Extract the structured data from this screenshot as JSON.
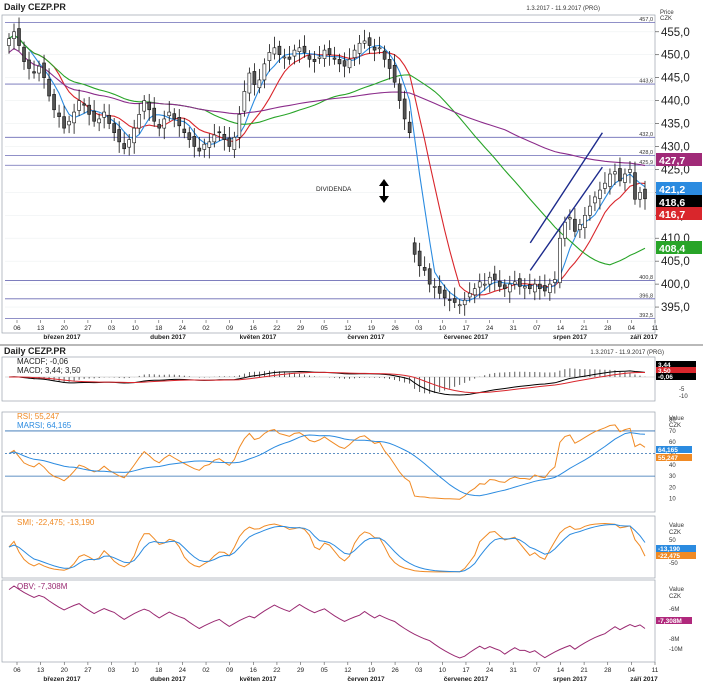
{
  "chart_data": [
    {
      "type": "candlestick",
      "title": "Daily CEZP.PR",
      "date_range": "1.3.2017 - 11.9.2017 (PRG)",
      "axis_title": [
        "Price",
        "CZK"
      ],
      "ylim": [
        390,
        458
      ],
      "y_ticks": [
        395.0,
        400.0,
        405.0,
        410.0,
        415.0,
        420.0,
        425.0,
        430.0,
        435.0,
        440.0,
        445.0,
        450.0,
        455.0
      ],
      "levels": [
        {
          "value": 457.0,
          "label": "457,0"
        },
        {
          "value": 443.6,
          "label": "443,6"
        },
        {
          "value": 432.0,
          "label": "432,0"
        },
        {
          "value": 428.0,
          "label": "428,0"
        },
        {
          "value": 425.9,
          "label": "425,9"
        },
        {
          "value": 400.8,
          "label": "400,8"
        },
        {
          "value": 396.8,
          "label": "396,8"
        },
        {
          "value": 392.5,
          "label": "392,5"
        }
      ],
      "annotation": "DIVIDENDA",
      "trend_channel": [
        {
          "from": [
            "2017-08-07",
            409.0
          ],
          "to": [
            "2017-08-29",
            433.0
          ]
        },
        {
          "from": [
            "2017-08-07",
            403.0
          ],
          "to": [
            "2017-08-29",
            425.5
          ]
        }
      ],
      "close": [
        453.5,
        455.0,
        452.0,
        448.5,
        447.0,
        446.0,
        447.5,
        445.0,
        441.0,
        438.0,
        436.5,
        434.0,
        435.5,
        437.5,
        440.0,
        439.0,
        437.0,
        435.5,
        436.0,
        437.5,
        435.0,
        433.0,
        431.0,
        429.5,
        431.5,
        434.0,
        437.0,
        440.0,
        438.0,
        435.5,
        434.0,
        436.0,
        437.5,
        436.0,
        434.5,
        433.0,
        431.5,
        430.0,
        429.0,
        430.5,
        431.0,
        432.5,
        433.0,
        431.5,
        430.0,
        432.0,
        437.0,
        442.0,
        446.0,
        443.5,
        444.5,
        448.0,
        450.5,
        451.5,
        450.0,
        449.5,
        449.0,
        451.0,
        451.5,
        450.5,
        449.0,
        448.5,
        449.5,
        451.0,
        450.0,
        449.0,
        448.0,
        447.5,
        449.0,
        451.0,
        452.5,
        453.0,
        452.0,
        451.0,
        451.5,
        449.0,
        447.0,
        444.0,
        440.0,
        436.0,
        433.0,
        406.5,
        404.0,
        403.0,
        400.0,
        399.5,
        398.0,
        397.0,
        396.5,
        396.0,
        395.5,
        396.5,
        398.0,
        399.0,
        400.5,
        400.0,
        401.5,
        401.0,
        399.5,
        399.0,
        400.0,
        400.5,
        399.5,
        399.5,
        399.0,
        400.0,
        399.0,
        398.5,
        400.0,
        401.0,
        410.0,
        413.5,
        414.5,
        411.5,
        413.0,
        415.0,
        417.0,
        419.0,
        420.5,
        422.0,
        424.0,
        424.5,
        422.5,
        424.0,
        425.0,
        418.5,
        420.0,
        418.6
      ],
      "series": [
        {
          "name": "SMA 10",
          "color": "#d9262c"
        },
        {
          "name": "SMA 5",
          "color": "#2b8be0"
        },
        {
          "name": "SMA 40",
          "color": "#28a428"
        },
        {
          "name": "SMA 100",
          "color": "#8b2c8b"
        }
      ],
      "last_values": [
        {
          "label": "427,7",
          "color": "#a02a78"
        },
        {
          "label": "421,2",
          "color": "#2b8be0"
        },
        {
          "label": "418,6",
          "color": "#000000"
        },
        {
          "label": "416,7",
          "color": "#d9262c"
        },
        {
          "label": "408,4",
          "color": "#28a428"
        }
      ],
      "x_tick_labels": [
        "06",
        "13",
        "20",
        "27",
        "03",
        "10",
        "18",
        "24",
        "02",
        "09",
        "16",
        "22",
        "29",
        "05",
        "12",
        "19",
        "26",
        "03",
        "10",
        "17",
        "24",
        "31",
        "07",
        "14",
        "21",
        "28",
        "04",
        "11"
      ],
      "month_labels": [
        "březen 2017",
        "duben 2017",
        "květen 2017",
        "červen 2017",
        "červenec 2017",
        "srpen 2017",
        "září 2017"
      ]
    },
    {
      "type": "line",
      "title": "Daily CEZP.PR",
      "date_range": "1.3.2017 - 11.9.2017 (PRG)",
      "legend": [
        "MACDF; -0,06",
        "MACD; 3,44; 3,50"
      ],
      "y_ticks": [
        "5",
        "-5",
        "-10"
      ],
      "last_values": [
        {
          "label": "3,44",
          "color": "#000000"
        },
        {
          "label": "3,50",
          "color": "#d9262c"
        },
        {
          "label": "-0,06",
          "color": "#000000"
        }
      ],
      "series": [
        {
          "name": "MACDF",
          "color": "#000000"
        },
        {
          "name": "MACD",
          "color": "#000000"
        },
        {
          "name": "signal",
          "color": "#d9262c"
        }
      ]
    },
    {
      "type": "line",
      "legend": [
        "RSI; 55,247",
        "MARSI; 64,165"
      ],
      "axis_title": [
        "Value",
        "CZK"
      ],
      "ylim": [
        0,
        85
      ],
      "y_ticks": [
        80,
        70,
        60,
        50,
        40,
        30,
        20,
        10
      ],
      "bands": [
        70,
        30
      ],
      "dashed_level": 50,
      "last_values": [
        {
          "label": "64,165",
          "color": "#2b8be0"
        },
        {
          "label": "55,247",
          "color": "#f08a24"
        }
      ],
      "series": [
        {
          "name": "RSI",
          "color": "#f08a24"
        },
        {
          "name": "MARSI",
          "color": "#2b8be0"
        }
      ]
    },
    {
      "type": "line",
      "legend": [
        "SMI; -22,475; -13,190"
      ],
      "axis_title": [
        "Value",
        "CZK"
      ],
      "y_ticks": [
        "50",
        "-50"
      ],
      "last_values": [
        {
          "label": "-13,190",
          "color": "#2b8be0"
        },
        {
          "label": "-22,475",
          "color": "#f08a24"
        }
      ],
      "series": [
        {
          "name": "SMI",
          "color": "#f08a24"
        },
        {
          "name": "signal",
          "color": "#2b8be0"
        }
      ]
    },
    {
      "type": "line",
      "legend": [
        "OBV; -7,308M"
      ],
      "axis_title": [
        "Value",
        "CZK"
      ],
      "y_ticks": [
        "-6M",
        "-8M",
        "-10M"
      ],
      "last_values": [
        {
          "label": "-7,308M",
          "color": "#b0287c"
        }
      ],
      "series": [
        {
          "name": "OBV",
          "color": "#9a2a72"
        }
      ]
    }
  ]
}
